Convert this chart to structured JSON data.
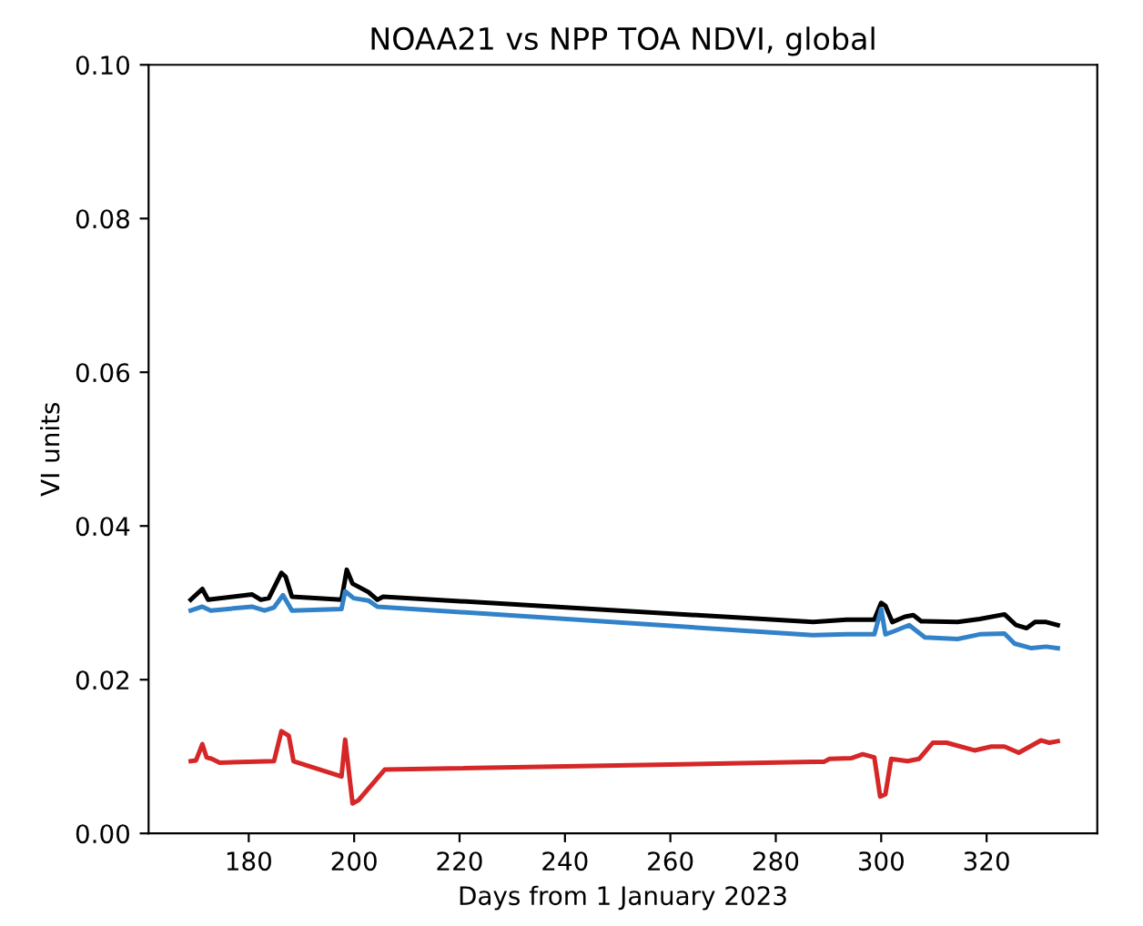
{
  "chart_data": {
    "type": "line",
    "title": "NOAA21 vs NPP TOA NDVI, global",
    "xlabel": "Days from 1 January 2023",
    "ylabel": "VI units",
    "xlim": [
      161,
      341
    ],
    "xticks": [
      180,
      200,
      220,
      240,
      260,
      280,
      300,
      320
    ],
    "ylim": [
      0,
      0.1
    ],
    "yticks": [
      {
        "value": 0,
        "label": "0.00"
      },
      {
        "value": 0.02,
        "label": "0.02"
      },
      {
        "value": 0.04,
        "label": "0.04"
      },
      {
        "value": 0.06,
        "label": "0.06"
      },
      {
        "value": 0.08,
        "label": "0.08"
      },
      {
        "value": 0.1,
        "label": "0.10"
      }
    ],
    "grid": false,
    "legend": false,
    "series": [
      {
        "color": "#000000",
        "x": [
          169,
          171.2,
          172.3,
          180.6,
          182.3,
          183.8,
          186.2,
          187,
          188.2,
          197.6,
          198.6,
          199.7,
          202.7,
          204.4,
          205.5,
          287.1,
          293.4,
          298.7,
          300,
          300.8,
          302.1,
          304.5,
          306.1,
          307.6,
          314.5,
          318.7,
          323.4,
          325.6,
          327.6,
          329.2,
          331.3,
          333.5
        ],
        "values": [
          0.0304,
          0.0318,
          0.0304,
          0.0311,
          0.0304,
          0.0306,
          0.0339,
          0.0334,
          0.0308,
          0.0304,
          0.0343,
          0.0325,
          0.0314,
          0.0304,
          0.0308,
          0.0275,
          0.0278,
          0.0278,
          0.03,
          0.0296,
          0.0275,
          0.0282,
          0.0284,
          0.0276,
          0.0275,
          0.0279,
          0.0285,
          0.0271,
          0.0267,
          0.0275,
          0.0275,
          0.0271
        ]
      },
      {
        "color": "#3182c8",
        "x": [
          169,
          171.2,
          172.8,
          180.6,
          183,
          184.8,
          186.5,
          188.2,
          197.6,
          198.3,
          199.9,
          202.7,
          204.4,
          287,
          293.4,
          298.7,
          300,
          300.8,
          302.4,
          305.3,
          308.3,
          314.5,
          318.7,
          323.4,
          325.3,
          328.5,
          331.3,
          333.5
        ],
        "values": [
          0.029,
          0.0295,
          0.029,
          0.0295,
          0.029,
          0.0294,
          0.031,
          0.029,
          0.0292,
          0.0315,
          0.0306,
          0.0303,
          0.0295,
          0.0258,
          0.0259,
          0.0259,
          0.0292,
          0.0259,
          0.0263,
          0.0271,
          0.0255,
          0.0253,
          0.0259,
          0.026,
          0.0247,
          0.0241,
          0.0243,
          0.0241
        ]
      },
      {
        "color": "#d62728",
        "x": [
          169,
          170,
          171.2,
          172,
          173,
          174.5,
          184.8,
          186.2,
          187.6,
          188.5,
          197.6,
          198.3,
          199.7,
          200.8,
          205.8,
          287,
          289.1,
          290.2,
          294.4,
          296.5,
          298.7,
          299.8,
          300.8,
          301.9,
          305,
          307.2,
          309.8,
          312.4,
          317.7,
          320.9,
          323.4,
          326.1,
          330.3,
          331.9,
          333.5
        ],
        "values": [
          0.0094,
          0.0095,
          0.0116,
          0.0099,
          0.0097,
          0.0092,
          0.0094,
          0.0133,
          0.0127,
          0.0094,
          0.0074,
          0.0122,
          0.0039,
          0.0043,
          0.0083,
          0.0093,
          0.0093,
          0.0097,
          0.0098,
          0.0103,
          0.0099,
          0.0048,
          0.0051,
          0.0097,
          0.0094,
          0.0097,
          0.0118,
          0.0118,
          0.0108,
          0.0113,
          0.0113,
          0.0105,
          0.0121,
          0.0118,
          0.012
        ]
      }
    ]
  }
}
